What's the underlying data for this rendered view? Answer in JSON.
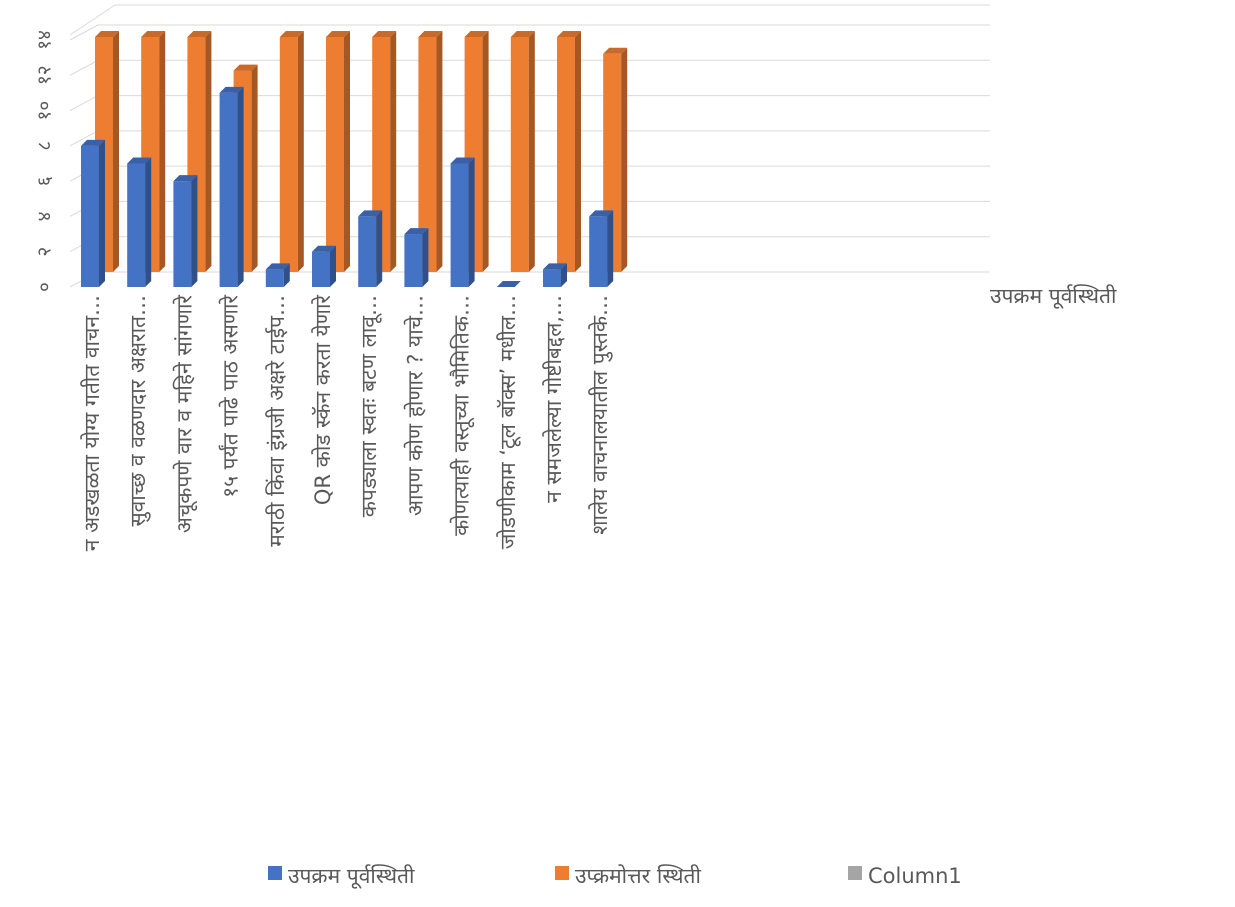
{
  "chart_data": {
    "type": "bar3d",
    "categories": [
      "न अडखळता योग्य गतीत वाचन…",
      "सुवाच्छ व वळणदार अक्षरात…",
      "अचूकपणे वार व महिने सांगणारे",
      "१५ पर्यंत पाढे पाठ असणारे",
      "मराठी किंवा इंग्रजी अक्षरे टाईप…",
      "QR कोड स्कॅन करता येणारे",
      "कपड्याला स्वतः बटण लावू…",
      "आपण कोण होणार ? याचे…",
      "कोणत्याही वस्तूच्या भौमितिक…",
      "जोडणीकाम ‘टूल बॉक्स’ मधील…",
      "न समजलेल्या गोष्टीबद्दल,…",
      "शालेय वाचनालयातील पुस्तके…"
    ],
    "series": [
      {
        "name": "उपक्रम पूर्वस्थिती",
        "color": "#4472c4",
        "values": [
          8,
          7,
          6,
          11,
          1,
          2,
          4,
          3,
          7,
          0,
          1,
          4
        ]
      },
      {
        "name": "उप्क्रमोत्तर स्थिती",
        "color": "#ed7d31",
        "values": [
          14,
          14,
          14,
          12,
          14,
          14,
          14,
          14,
          14,
          14,
          14,
          13
        ]
      },
      {
        "name": "Column1",
        "color": "#a5a5a5",
        "values": [
          null,
          null,
          null,
          null,
          null,
          null,
          null,
          null,
          null,
          null,
          null,
          null
        ]
      }
    ],
    "ylim": [
      0,
      14
    ],
    "yticks": [
      {
        "value": 0,
        "label": "०"
      },
      {
        "value": 2,
        "label": "२"
      },
      {
        "value": 4,
        "label": "४"
      },
      {
        "value": 6,
        "label": "६"
      },
      {
        "value": 8,
        "label": "८"
      },
      {
        "value": 10,
        "label": "१०"
      },
      {
        "value": 12,
        "label": "१२"
      },
      {
        "value": 14,
        "label": "१४"
      }
    ],
    "grid": true
  }
}
